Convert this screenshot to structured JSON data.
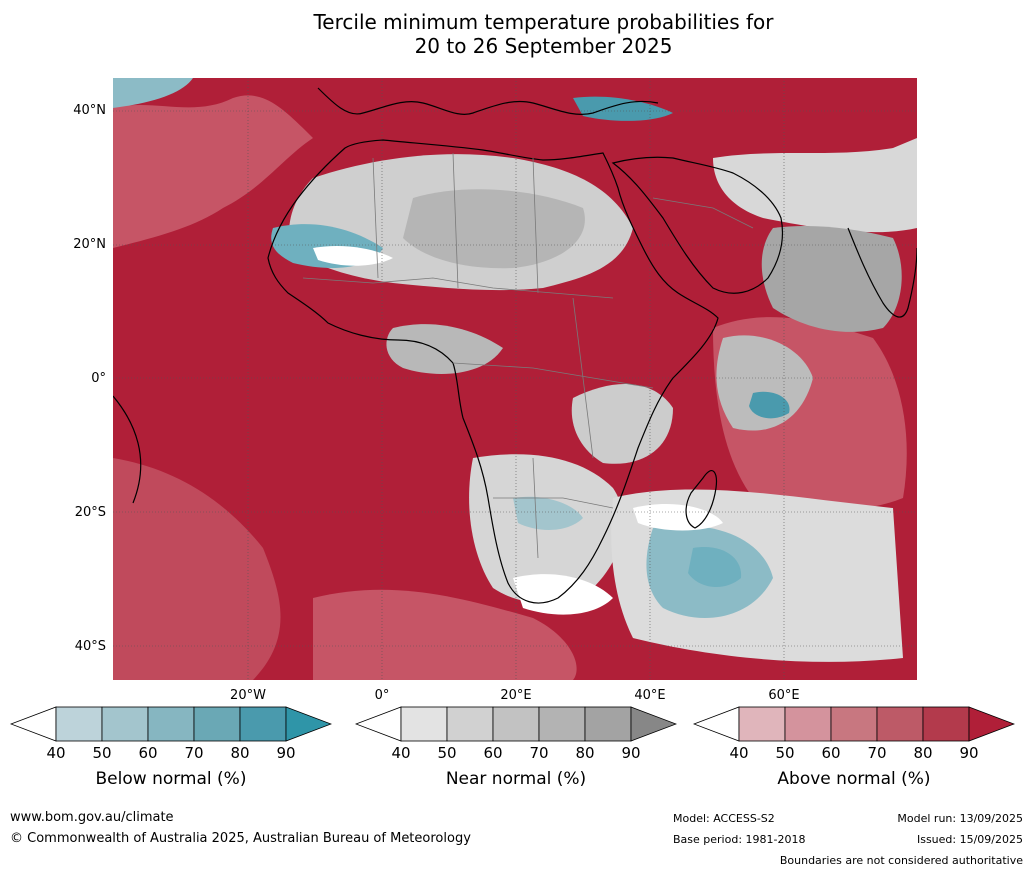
{
  "title_line1": "Tercile minimum temperature probabilities for",
  "title_line2": "20 to 26 September 2025",
  "map": {
    "lat_labels": [
      "40°N",
      "20°N",
      "0°",
      "20°S",
      "40°S"
    ],
    "lon_labels": [
      "20°W",
      "0°",
      "20°E",
      "40°E",
      "60°E"
    ],
    "colors": {
      "ocean_above": "#b01f38",
      "near_normal": "#cfcfcf",
      "below_normal": "#6fb0bf",
      "above_light": "#d27f8b",
      "coastline": "#000000",
      "boundary": "#7a7a7a",
      "grid": "#555555"
    }
  },
  "colorbars": [
    {
      "title": "Below normal (%)",
      "ticks": [
        "40",
        "50",
        "60",
        "70",
        "80",
        "90"
      ],
      "colors": [
        "#ffffff",
        "#bdd3da",
        "#a3c5cd",
        "#86b6c1",
        "#6aa8b5",
        "#4a9aad",
        "#2f95a8"
      ]
    },
    {
      "title": "Near normal (%)",
      "ticks": [
        "40",
        "50",
        "60",
        "70",
        "80",
        "90"
      ],
      "colors": [
        "#ffffff",
        "#e3e3e3",
        "#d1d1d1",
        "#c2c2c2",
        "#b3b3b3",
        "#a3a3a3",
        "#878787"
      ]
    },
    {
      "title": "Above normal (%)",
      "ticks": [
        "40",
        "50",
        "60",
        "70",
        "80",
        "90"
      ],
      "colors": [
        "#ffffff",
        "#e0b5bb",
        "#d4939d",
        "#c87780",
        "#bd5a67",
        "#b33a4c",
        "#b01f38"
      ]
    }
  ],
  "footer": {
    "url": "www.bom.gov.au/climate",
    "copyright": "© Commonwealth of Australia 2025, Australian Bureau of Meteorology",
    "model": "Model: ACCESS-S2",
    "base_period": "Base period: 1981-2018",
    "model_run": "Model run: 13/09/2025",
    "issued": "Issued: 15/09/2025",
    "disclaimer": "Boundaries are not considered authoritative"
  }
}
